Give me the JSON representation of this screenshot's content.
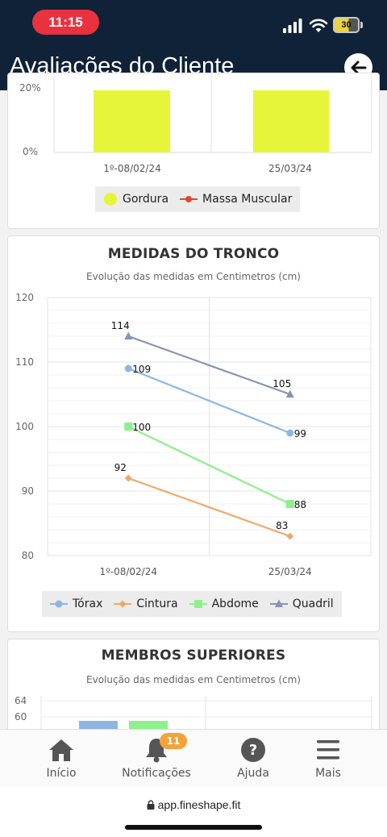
{
  "status_bar": {
    "time": "11:15",
    "battery": "30"
  },
  "header": {
    "title": "Avaliações do Cliente",
    "back_icon": "arrow-left-icon"
  },
  "composition_chart": {
    "y_ticks": [
      "20%",
      "0%"
    ],
    "categories": [
      "1º-08/02/24",
      "25/03/24"
    ],
    "legend": [
      {
        "label": "Gordura",
        "color": "#e6f53a"
      },
      {
        "label": "Massa Muscular",
        "color": "#e0482a"
      }
    ]
  },
  "trunk_card": {
    "title": "MEDIDAS DO TRONCO",
    "subtitle": "Evolução das medidas em Centimetros (cm)"
  },
  "chart_data": {
    "type": "line",
    "categories": [
      "1º-08/02/24",
      "25/03/24"
    ],
    "y_ticks": [
      "120",
      "110",
      "100",
      "90",
      "80"
    ],
    "ylim": [
      80,
      120
    ],
    "series": [
      {
        "name": "Tórax",
        "values": [
          109,
          99
        ],
        "color": "#8db6e3",
        "marker": "circle"
      },
      {
        "name": "Cintura",
        "values": [
          92,
          83
        ],
        "color": "#f0a868",
        "marker": "diamond"
      },
      {
        "name": "Abdome",
        "values": [
          100,
          88
        ],
        "color": "#8cf18c",
        "marker": "square"
      },
      {
        "name": "Quadril",
        "values": [
          114,
          105
        ],
        "color": "#8595b3",
        "marker": "triangle"
      }
    ],
    "grid": true,
    "legend": "bottom"
  },
  "upper_limbs_card": {
    "title": "MEMBROS SUPERIORES",
    "subtitle": "Evolução das medidas em Centimetros (cm)",
    "y_ticks": [
      "64",
      "60"
    ]
  },
  "bottom_nav": {
    "items": [
      {
        "label": "Início",
        "icon": "home-icon"
      },
      {
        "label": "Notificações",
        "icon": "bell-icon",
        "badge": "11"
      },
      {
        "label": "Ajuda",
        "icon": "help-icon"
      },
      {
        "label": "Mais",
        "icon": "menu-icon"
      }
    ]
  },
  "browser": {
    "url": "app.fineshape.fit"
  }
}
